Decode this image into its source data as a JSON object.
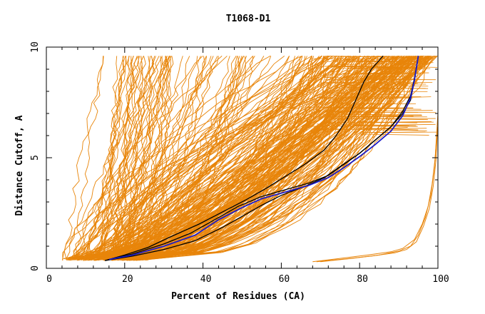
{
  "chart_data": {
    "type": "line",
    "title": "T1068-D1",
    "xlabel": "Percent of Residues (CA)",
    "ylabel": "Distance Cutoff, A",
    "xlim": [
      0,
      100
    ],
    "ylim": [
      0,
      10
    ],
    "xticks": [
      0,
      20,
      40,
      60,
      80,
      100
    ],
    "yticks": [
      0,
      5,
      10
    ],
    "grid": false,
    "legend": "none",
    "colors": {
      "bundle": "#e8850a",
      "highlight_black": "#000000",
      "highlight_blue": "#1c1cc8"
    },
    "highlight_series": [
      {
        "color": "black",
        "x": [
          15,
          20,
          26,
          32,
          39,
          45,
          51,
          56,
          61,
          66,
          71,
          74,
          77,
          79,
          81,
          83,
          86
        ],
        "y": [
          0.35,
          0.6,
          0.95,
          1.45,
          2.0,
          2.55,
          3.1,
          3.6,
          4.15,
          4.7,
          5.35,
          6.0,
          6.8,
          7.6,
          8.4,
          9.0,
          9.6
        ]
      },
      {
        "color": "black",
        "x": [
          15,
          22,
          30,
          38,
          45,
          51,
          55,
          60,
          66,
          71,
          75,
          80,
          84,
          88,
          91,
          93,
          94,
          95
        ],
        "y": [
          0.35,
          0.55,
          0.85,
          1.25,
          1.85,
          2.45,
          2.85,
          3.3,
          3.7,
          4.1,
          4.6,
          5.2,
          5.8,
          6.4,
          7.0,
          7.6,
          8.5,
          9.6
        ]
      },
      {
        "color": "black",
        "x": [
          15,
          22,
          30,
          37,
          43,
          49,
          55,
          61,
          67,
          72,
          76,
          80,
          84,
          88,
          91,
          93,
          94,
          95
        ],
        "y": [
          0.35,
          0.65,
          1.1,
          1.6,
          2.2,
          2.8,
          3.25,
          3.55,
          3.85,
          4.2,
          4.7,
          5.2,
          5.8,
          6.4,
          7.1,
          7.8,
          8.6,
          9.6
        ]
      },
      {
        "color": "blue",
        "x": [
          16,
          22,
          30,
          38,
          44,
          50,
          55,
          61,
          67,
          72,
          76,
          80,
          84,
          88,
          91,
          93,
          94,
          95
        ],
        "y": [
          0.4,
          0.6,
          1.0,
          1.5,
          2.2,
          2.75,
          3.15,
          3.45,
          3.75,
          4.1,
          4.55,
          5.05,
          5.6,
          6.2,
          6.9,
          7.7,
          8.5,
          9.6
        ]
      }
    ],
    "outlier_series": [
      {
        "x": [
          68,
          75,
          82,
          88,
          91,
          94,
          96,
          97.5,
          98.5,
          99.3,
          99.7,
          100
        ],
        "y": [
          0.3,
          0.45,
          0.6,
          0.75,
          0.9,
          1.3,
          2.0,
          2.8,
          3.8,
          5.0,
          6.2,
          7.0
        ]
      },
      {
        "x": [
          69,
          76,
          83,
          89,
          92,
          94.5,
          96.3,
          97.8,
          98.8,
          99.5,
          99.9
        ],
        "y": [
          0.3,
          0.42,
          0.55,
          0.7,
          0.85,
          1.2,
          1.9,
          2.7,
          3.7,
          4.9,
          6.4
        ]
      },
      {
        "x": [
          70,
          78,
          85,
          90,
          93,
          95,
          96.8,
          98.2,
          99.1,
          99.7
        ],
        "y": [
          0.3,
          0.45,
          0.6,
          0.78,
          1.0,
          1.5,
          2.3,
          3.3,
          4.6,
          6.0
        ]
      }
    ]
  }
}
